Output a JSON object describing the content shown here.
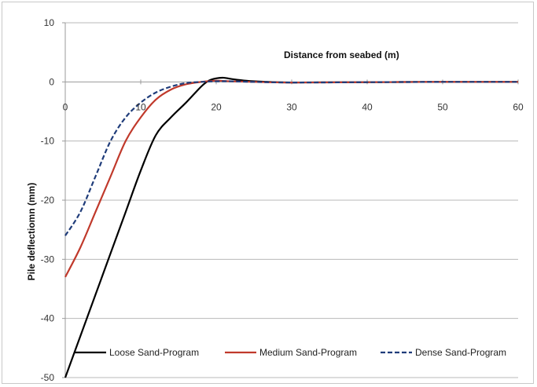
{
  "chart_data": {
    "type": "line",
    "xlabel": "Distance from seabed (m)",
    "ylabel": "Pile deflectiomn (mm)",
    "xlim": [
      0,
      60
    ],
    "ylim": [
      -50,
      10
    ],
    "xticks": [
      0,
      10,
      20,
      30,
      40,
      50,
      60
    ],
    "yticks": [
      10,
      0,
      -10,
      -20,
      -30,
      -40,
      -50
    ],
    "xtick_labels": [
      "0",
      "10",
      "20",
      "30",
      "40",
      "50",
      "60"
    ],
    "ytick_labels": [
      "10",
      "0",
      "-10",
      "-20",
      "-30",
      "-40",
      "-50"
    ],
    "grid": "horizontal",
    "legend_position": "bottom",
    "series": [
      {
        "name": "Loose Sand-Program",
        "color": "#000000",
        "dash": "solid",
        "x": [
          0,
          2,
          4,
          6,
          8,
          10,
          12,
          14,
          16,
          18,
          19,
          20,
          21,
          22,
          24,
          26,
          30,
          40,
          50,
          60
        ],
        "y": [
          -50,
          -43,
          -36,
          -29,
          -22,
          -15,
          -9,
          -6,
          -3.5,
          -0.8,
          0.2,
          0.6,
          0.7,
          0.5,
          0.2,
          0.05,
          -0.1,
          -0.05,
          0,
          0
        ]
      },
      {
        "name": "Medium Sand-Program",
        "color": "#c0392b",
        "dash": "solid",
        "x": [
          0,
          2,
          4,
          6,
          8,
          10,
          12,
          14,
          16,
          18,
          20,
          22,
          25,
          30,
          40,
          50,
          60
        ],
        "y": [
          -33,
          -28,
          -22,
          -16,
          -10,
          -6,
          -3,
          -1.3,
          -0.4,
          0,
          0.2,
          0.1,
          0,
          -0.1,
          -0.05,
          0,
          0
        ]
      },
      {
        "name": "Dense Sand-Program",
        "color": "#1f3c7a",
        "dash": "dashed",
        "x": [
          0,
          2,
          4,
          6,
          8,
          10,
          12,
          14,
          16,
          18,
          20,
          22,
          25,
          30,
          40,
          50,
          60
        ],
        "y": [
          -26,
          -22,
          -16,
          -10,
          -6,
          -3.5,
          -1.8,
          -0.8,
          -0.2,
          0,
          0.1,
          0.1,
          0,
          -0.1,
          -0.05,
          0,
          0
        ]
      }
    ]
  }
}
